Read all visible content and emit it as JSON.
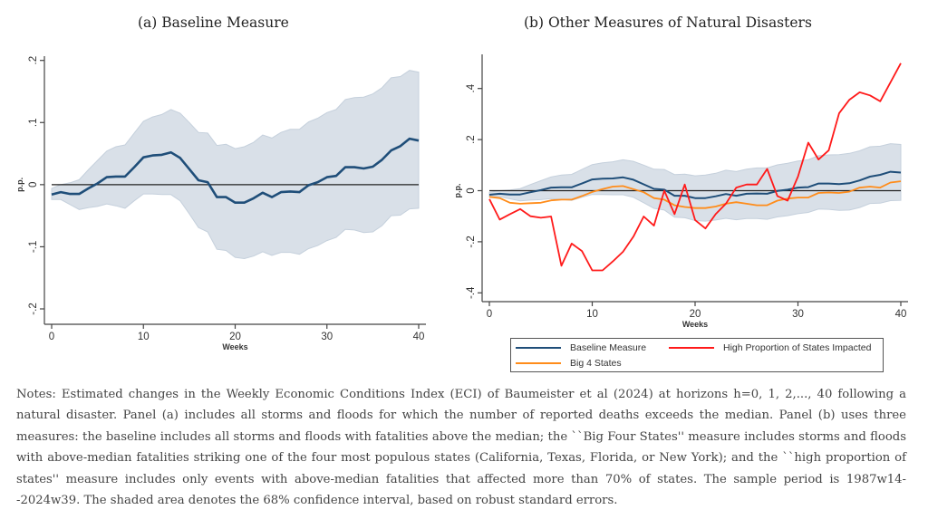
{
  "chart_data": [
    {
      "type": "line",
      "title": "(a) Baseline Measure",
      "xlabel": "Weeks",
      "ylabel": "p.p.",
      "xlim": [
        0,
        40
      ],
      "ylim": [
        -0.2,
        0.2
      ],
      "xticks": [
        0,
        10,
        20,
        30,
        40
      ],
      "xtick_labels": [
        "0",
        "10",
        "20",
        "30",
        "40"
      ],
      "yticks": [
        -0.2,
        -0.1,
        0,
        0.1,
        0.2
      ],
      "ytick_labels": [
        "-.2",
        "-.1",
        "0",
        ".1",
        ".2"
      ],
      "grid": false,
      "reference_line": 0,
      "x": [
        0,
        1,
        2,
        3,
        4,
        5,
        6,
        7,
        8,
        9,
        10,
        11,
        12,
        13,
        14,
        15,
        16,
        17,
        18,
        19,
        20,
        21,
        22,
        23,
        24,
        25,
        26,
        27,
        28,
        29,
        30,
        31,
        32,
        33,
        34,
        35,
        36,
        37,
        38,
        39,
        40
      ],
      "series": [
        {
          "name": "Baseline Measure",
          "color": "#1f4e79",
          "values": [
            -0.016,
            -0.012,
            -0.015,
            -0.015,
            -0.006,
            0.002,
            0.012,
            0.013,
            0.013,
            0.028,
            0.044,
            0.047,
            0.048,
            0.052,
            0.043,
            0.025,
            0.007,
            0.004,
            -0.02,
            -0.02,
            -0.029,
            -0.029,
            -0.022,
            -0.013,
            -0.02,
            -0.012,
            -0.011,
            -0.012,
            -0.001,
            0.004,
            0.012,
            0.014,
            0.028,
            0.028,
            0.026,
            0.029,
            0.04,
            0.055,
            0.062,
            0.074,
            0.071
          ],
          "ci_lower": [
            -0.024,
            -0.024,
            -0.032,
            -0.04,
            -0.037,
            -0.035,
            -0.031,
            -0.034,
            -0.038,
            -0.026,
            -0.015,
            -0.015,
            -0.016,
            -0.016,
            -0.026,
            -0.047,
            -0.069,
            -0.076,
            -0.104,
            -0.106,
            -0.117,
            -0.119,
            -0.115,
            -0.108,
            -0.114,
            -0.109,
            -0.109,
            -0.112,
            -0.103,
            -0.098,
            -0.09,
            -0.085,
            -0.072,
            -0.073,
            -0.077,
            -0.076,
            -0.066,
            -0.05,
            -0.049,
            -0.039,
            -0.038
          ],
          "ci_upper": [
            -0.006,
            0.0,
            0.003,
            0.008,
            0.024,
            0.039,
            0.054,
            0.061,
            0.064,
            0.083,
            0.102,
            0.109,
            0.113,
            0.121,
            0.115,
            0.1,
            0.084,
            0.083,
            0.063,
            0.065,
            0.058,
            0.061,
            0.068,
            0.08,
            0.075,
            0.084,
            0.089,
            0.089,
            0.101,
            0.107,
            0.116,
            0.121,
            0.137,
            0.14,
            0.141,
            0.146,
            0.156,
            0.172,
            0.174,
            0.184,
            0.181
          ],
          "ci_color": "#d9e0e8",
          "ci_label": "68% confidence interval"
        }
      ]
    },
    {
      "type": "line",
      "title": "(b) Other Measures of Natural Disasters",
      "xlabel": "Weeks",
      "ylabel": "p.p.",
      "xlim": [
        0,
        40
      ],
      "ylim": [
        -0.45,
        0.52
      ],
      "xticks": [
        0,
        10,
        20,
        30,
        40
      ],
      "xtick_labels": [
        "0",
        "10",
        "20",
        "30",
        "40"
      ],
      "yticks": [
        -0.4,
        -0.2,
        0,
        0.2,
        0.4
      ],
      "ytick_labels": [
        "-.4",
        "-.2",
        "0",
        ".2",
        ".4"
      ],
      "grid": false,
      "reference_line": 0,
      "legend_position": "bottom",
      "x": [
        0,
        1,
        2,
        3,
        4,
        5,
        6,
        7,
        8,
        9,
        10,
        11,
        12,
        13,
        14,
        15,
        16,
        17,
        18,
        19,
        20,
        21,
        22,
        23,
        24,
        25,
        26,
        27,
        28,
        29,
        30,
        31,
        32,
        33,
        34,
        35,
        36,
        37,
        38,
        39,
        40
      ],
      "series": [
        {
          "name": "Baseline Measure",
          "color": "#1f4e79",
          "values": [
            -0.016,
            -0.012,
            -0.015,
            -0.015,
            -0.006,
            0.002,
            0.012,
            0.013,
            0.013,
            0.028,
            0.044,
            0.047,
            0.048,
            0.052,
            0.043,
            0.025,
            0.007,
            0.004,
            -0.02,
            -0.02,
            -0.029,
            -0.029,
            -0.022,
            -0.013,
            -0.02,
            -0.012,
            -0.011,
            -0.012,
            -0.001,
            0.004,
            0.012,
            0.014,
            0.028,
            0.028,
            0.026,
            0.029,
            0.04,
            0.055,
            0.062,
            0.074,
            0.071
          ],
          "ci_lower": [
            -0.024,
            -0.024,
            -0.032,
            -0.04,
            -0.037,
            -0.035,
            -0.031,
            -0.034,
            -0.038,
            -0.026,
            -0.015,
            -0.015,
            -0.016,
            -0.016,
            -0.026,
            -0.047,
            -0.069,
            -0.076,
            -0.104,
            -0.106,
            -0.117,
            -0.119,
            -0.115,
            -0.108,
            -0.114,
            -0.109,
            -0.109,
            -0.112,
            -0.103,
            -0.098,
            -0.09,
            -0.085,
            -0.072,
            -0.073,
            -0.077,
            -0.076,
            -0.066,
            -0.05,
            -0.049,
            -0.039,
            -0.038
          ],
          "ci_upper": [
            -0.006,
            0.0,
            0.003,
            0.008,
            0.024,
            0.039,
            0.054,
            0.061,
            0.064,
            0.083,
            0.102,
            0.109,
            0.113,
            0.121,
            0.115,
            0.1,
            0.084,
            0.083,
            0.063,
            0.065,
            0.058,
            0.061,
            0.068,
            0.08,
            0.075,
            0.084,
            0.089,
            0.089,
            0.101,
            0.107,
            0.116,
            0.121,
            0.137,
            0.14,
            0.141,
            0.146,
            0.156,
            0.172,
            0.174,
            0.184,
            0.181
          ],
          "ci_color": "#d9e0e8"
        },
        {
          "name": "High Proportion of States Impacted",
          "color": "#ff1a1a",
          "values": [
            -0.033,
            -0.113,
            -0.092,
            -0.072,
            -0.1,
            -0.106,
            -0.101,
            -0.294,
            -0.207,
            -0.236,
            -0.312,
            -0.312,
            -0.277,
            -0.239,
            -0.18,
            -0.101,
            -0.137,
            0.0,
            -0.092,
            0.024,
            -0.115,
            -0.148,
            -0.092,
            -0.051,
            0.012,
            0.024,
            0.024,
            0.085,
            -0.021,
            -0.039,
            0.055,
            0.188,
            0.122,
            0.158,
            0.303,
            0.356,
            0.385,
            0.373,
            0.35,
            0.424,
            0.499
          ]
        },
        {
          "name": "Big 4 States",
          "color": "#ff8c1a",
          "values": [
            -0.024,
            -0.029,
            -0.047,
            -0.051,
            -0.049,
            -0.047,
            -0.038,
            -0.035,
            -0.035,
            -0.021,
            -0.005,
            0.006,
            0.016,
            0.018,
            0.006,
            -0.006,
            -0.029,
            -0.035,
            -0.057,
            -0.064,
            -0.068,
            -0.068,
            -0.062,
            -0.051,
            -0.045,
            -0.051,
            -0.057,
            -0.057,
            -0.039,
            -0.031,
            -0.027,
            -0.027,
            -0.009,
            -0.007,
            -0.009,
            -0.004,
            0.012,
            0.016,
            0.012,
            0.032,
            0.037
          ]
        }
      ]
    }
  ],
  "legend": {
    "items": [
      {
        "label": "Baseline Measure",
        "color": "#1f4e79"
      },
      {
        "label": "High Proportion of States Impacted",
        "color": "#ff1a1a"
      },
      {
        "label": "Big 4 States",
        "color": "#ff8c1a"
      }
    ]
  },
  "notes": "Notes: Estimated changes in the Weekly Economic Conditions Index (ECI) of Baumeister et al (2024) at horizons h=0, 1, 2,..., 40 following a natural disaster. Panel (a) includes all storms and floods for which the number of reported deaths exceeds the median. Panel (b) uses three measures: the baseline includes all storms and floods with fatalities above the median; the ``Big Four States'' measure includes storms and floods with above-median fatalities striking one of the four most populous states (California, Texas, Florida, or New York); and the ``high proportion of states'' measure includes only events with above-median fatalities that affected more than 70% of states. The sample period is 1987w14--2024w39. The shaded area denotes the 68% confidence interval, based on robust standard errors."
}
